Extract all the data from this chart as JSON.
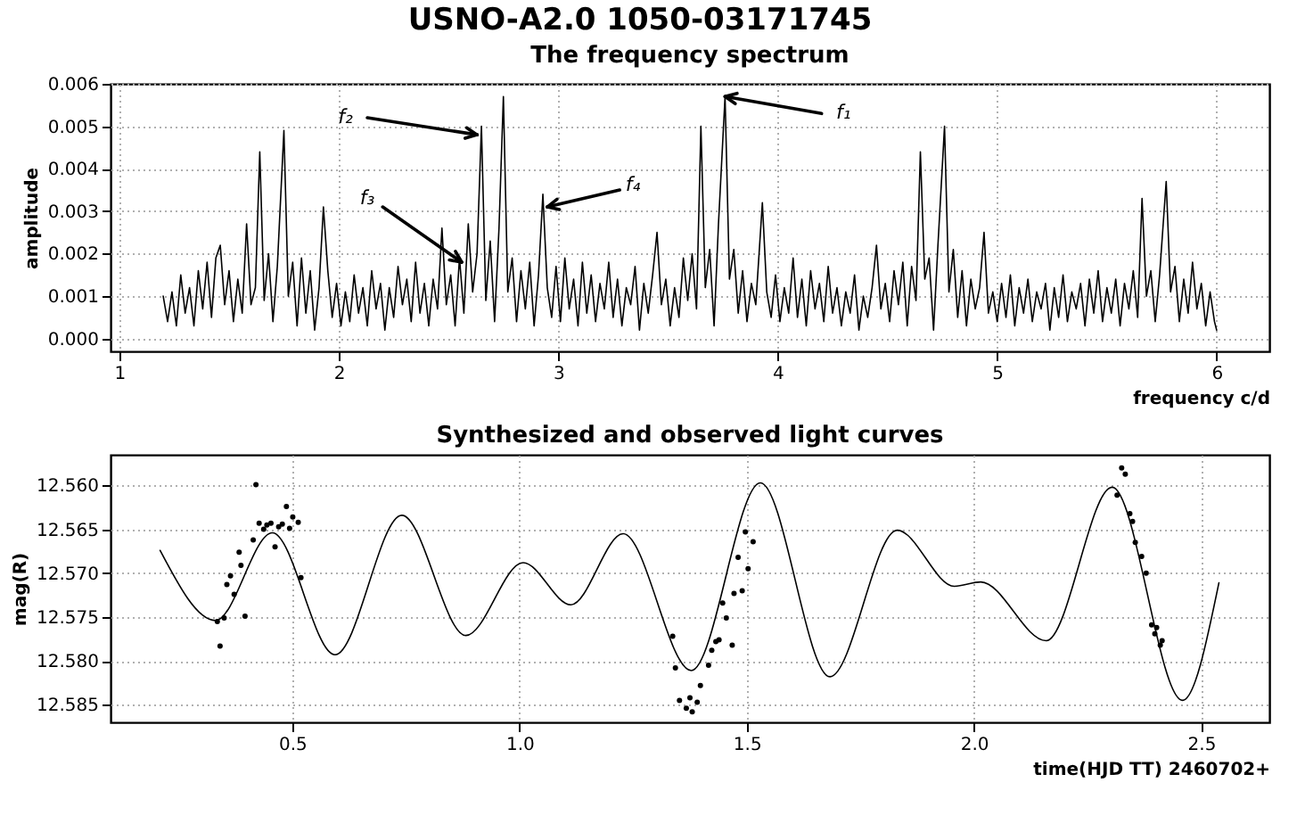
{
  "chart_data": [
    {
      "type": "line",
      "title": "USNO-A2.0 1050-03171745",
      "subtitle": "The frequency spectrum",
      "xlabel": "frequency c/d",
      "ylabel": "amplitude",
      "color": "#000000",
      "marker": "none",
      "line_style": "solid",
      "grid": true,
      "xlim": [
        0.96,
        6.24
      ],
      "ylim": [
        -0.0003,
        0.006
      ],
      "xticks": [
        1,
        2,
        3,
        4,
        5,
        6
      ],
      "yticks": [
        {
          "value": 0,
          "label": "0.000"
        },
        {
          "value": 0.001,
          "label": "0.001"
        },
        {
          "value": 0.002,
          "label": "0.002"
        },
        {
          "value": 0.003,
          "label": "0.003"
        },
        {
          "value": 0.004,
          "label": "0.004"
        },
        {
          "value": 0.005,
          "label": "0.005"
        },
        {
          "value": 0.006,
          "label": "0.006"
        }
      ],
      "x": [
        1.2,
        1.22,
        1.24,
        1.26,
        1.28,
        1.3,
        1.32,
        1.34,
        1.36,
        1.38,
        1.4,
        1.42,
        1.44,
        1.46,
        1.48,
        1.5,
        1.52,
        1.54,
        1.56,
        1.58,
        1.6,
        1.62,
        1.64,
        1.66,
        1.68,
        1.7,
        1.72,
        1.75,
        1.77,
        1.79,
        1.81,
        1.83,
        1.85,
        1.87,
        1.89,
        1.91,
        1.93,
        1.95,
        1.97,
        1.99,
        2.01,
        2.03,
        2.05,
        2.07,
        2.09,
        2.11,
        2.13,
        2.15,
        2.17,
        2.19,
        2.21,
        2.23,
        2.25,
        2.27,
        2.29,
        2.31,
        2.33,
        2.35,
        2.37,
        2.39,
        2.41,
        2.43,
        2.45,
        2.47,
        2.49,
        2.51,
        2.53,
        2.55,
        2.57,
        2.59,
        2.61,
        2.63,
        2.65,
        2.67,
        2.69,
        2.71,
        2.73,
        2.75,
        2.77,
        2.79,
        2.81,
        2.83,
        2.85,
        2.87,
        2.89,
        2.91,
        2.93,
        2.95,
        2.97,
        2.99,
        3.01,
        3.03,
        3.05,
        3.07,
        3.09,
        3.11,
        3.13,
        3.15,
        3.17,
        3.19,
        3.21,
        3.23,
        3.25,
        3.27,
        3.29,
        3.31,
        3.33,
        3.35,
        3.37,
        3.39,
        3.41,
        3.43,
        3.45,
        3.47,
        3.49,
        3.51,
        3.53,
        3.55,
        3.57,
        3.59,
        3.61,
        3.63,
        3.65,
        3.67,
        3.69,
        3.71,
        3.73,
        3.76,
        3.78,
        3.8,
        3.82,
        3.84,
        3.86,
        3.88,
        3.9,
        3.93,
        3.95,
        3.97,
        3.99,
        4.01,
        4.03,
        4.05,
        4.07,
        4.09,
        4.11,
        4.13,
        4.15,
        4.17,
        4.19,
        4.21,
        4.23,
        4.25,
        4.27,
        4.29,
        4.31,
        4.33,
        4.35,
        4.37,
        4.39,
        4.41,
        4.43,
        4.45,
        4.47,
        4.49,
        4.51,
        4.53,
        4.55,
        4.57,
        4.59,
        4.61,
        4.63,
        4.65,
        4.67,
        4.69,
        4.71,
        4.73,
        4.76,
        4.78,
        4.8,
        4.82,
        4.84,
        4.86,
        4.88,
        4.9,
        4.92,
        4.94,
        4.96,
        4.98,
        5.0,
        5.02,
        5.04,
        5.06,
        5.08,
        5.1,
        5.12,
        5.14,
        5.16,
        5.18,
        5.2,
        5.22,
        5.24,
        5.26,
        5.28,
        5.3,
        5.32,
        5.34,
        5.36,
        5.38,
        5.4,
        5.42,
        5.44,
        5.46,
        5.48,
        5.5,
        5.52,
        5.54,
        5.56,
        5.58,
        5.6,
        5.62,
        5.64,
        5.66,
        5.68,
        5.7,
        5.72,
        5.74,
        5.77,
        5.79,
        5.81,
        5.83,
        5.85,
        5.87,
        5.89,
        5.91,
        5.93,
        5.95,
        5.97,
        5.99,
        6.0
      ],
      "values": [
        0.001,
        0.0004,
        0.0011,
        0.0003,
        0.0015,
        0.0006,
        0.0012,
        0.0003,
        0.0016,
        0.0007,
        0.0018,
        0.0005,
        0.0019,
        0.0022,
        0.0008,
        0.0016,
        0.0004,
        0.0014,
        0.0006,
        0.0027,
        0.0008,
        0.0012,
        0.0044,
        0.0009,
        0.002,
        0.0004,
        0.0017,
        0.0049,
        0.001,
        0.0018,
        0.0003,
        0.0019,
        0.0006,
        0.0016,
        0.0002,
        0.0012,
        0.0031,
        0.0016,
        0.0005,
        0.0013,
        0.0003,
        0.0011,
        0.0004,
        0.0015,
        0.0006,
        0.0012,
        0.0003,
        0.0016,
        0.0007,
        0.0013,
        0.0002,
        0.0012,
        0.0005,
        0.0017,
        0.0008,
        0.0014,
        0.0004,
        0.0018,
        0.0006,
        0.0013,
        0.0003,
        0.0014,
        0.0007,
        0.0026,
        0.0008,
        0.0015,
        0.0003,
        0.0019,
        0.0006,
        0.0027,
        0.0011,
        0.002,
        0.005,
        0.0009,
        0.0023,
        0.0004,
        0.0026,
        0.0057,
        0.0011,
        0.0019,
        0.0004,
        0.0016,
        0.0007,
        0.0018,
        0.0003,
        0.0015,
        0.0034,
        0.0012,
        0.0005,
        0.0017,
        0.0004,
        0.0019,
        0.0007,
        0.0014,
        0.0003,
        0.0018,
        0.0006,
        0.0015,
        0.0004,
        0.0013,
        0.0007,
        0.0018,
        0.0005,
        0.0014,
        0.0003,
        0.0012,
        0.0008,
        0.0017,
        0.0002,
        0.0013,
        0.0006,
        0.0015,
        0.0025,
        0.0008,
        0.0014,
        0.0003,
        0.0012,
        0.0005,
        0.0019,
        0.0009,
        0.002,
        0.0007,
        0.005,
        0.0012,
        0.0021,
        0.0003,
        0.0027,
        0.0057,
        0.0014,
        0.0021,
        0.0006,
        0.0016,
        0.0004,
        0.0013,
        0.0008,
        0.0032,
        0.0011,
        0.0005,
        0.0015,
        0.0004,
        0.0012,
        0.0006,
        0.0019,
        0.0005,
        0.0014,
        0.0003,
        0.0016,
        0.0007,
        0.0013,
        0.0004,
        0.0017,
        0.0006,
        0.0012,
        0.0003,
        0.0011,
        0.0006,
        0.0015,
        0.0002,
        0.001,
        0.0005,
        0.0012,
        0.0022,
        0.0007,
        0.0013,
        0.0004,
        0.0016,
        0.0008,
        0.0018,
        0.0003,
        0.0017,
        0.0009,
        0.0044,
        0.0014,
        0.0019,
        0.0002,
        0.0022,
        0.005,
        0.0011,
        0.0021,
        0.0005,
        0.0016,
        0.0003,
        0.0014,
        0.0007,
        0.0012,
        0.0025,
        0.0006,
        0.0011,
        0.0004,
        0.0013,
        0.0005,
        0.0015,
        0.0003,
        0.0012,
        0.0006,
        0.0014,
        0.0004,
        0.0011,
        0.0007,
        0.0013,
        0.0002,
        0.0012,
        0.0005,
        0.0015,
        0.0004,
        0.0011,
        0.0007,
        0.0013,
        0.0003,
        0.0014,
        0.0006,
        0.0016,
        0.0004,
        0.0012,
        0.0006,
        0.0014,
        0.0003,
        0.0013,
        0.0007,
        0.0016,
        0.0005,
        0.0033,
        0.001,
        0.0016,
        0.0004,
        0.0015,
        0.0037,
        0.0011,
        0.0017,
        0.0004,
        0.0014,
        0.0006,
        0.0018,
        0.0007,
        0.0013,
        0.0003,
        0.0011,
        0.0004,
        0.0002
      ],
      "annotations": [
        {
          "text": "f₁",
          "x": 3.76,
          "y": 0.0057
        },
        {
          "text": "f₂",
          "x": 2.63,
          "y": 0.0048
        },
        {
          "text": "f₃",
          "x": 2.56,
          "y": 0.0018
        },
        {
          "text": "f₄",
          "x": 2.95,
          "y": 0.0031
        }
      ]
    },
    {
      "type": "line",
      "title": "Synthesized and observed light curves",
      "xlabel": "time(HJD TT) 2460702+",
      "ylabel": "mag(R)",
      "grid": true,
      "xlim": [
        0.1,
        2.65
      ],
      "ylim": [
        12.587,
        12.5565
      ],
      "xticks": [
        0.5,
        {
          "value": 1,
          "label": "1.0"
        },
        1.5,
        {
          "value": 2,
          "label": "2.0"
        },
        2.5
      ],
      "yticks": [
        {
          "value": 12.56,
          "label": "12.560"
        },
        {
          "value": 12.565,
          "label": "12.565"
        },
        {
          "value": 12.57,
          "label": "12.570"
        },
        {
          "value": 12.575,
          "label": "12.575"
        },
        {
          "value": 12.58,
          "label": "12.580"
        },
        {
          "value": 12.585,
          "label": "12.585"
        }
      ],
      "series": [
        {
          "type": "line",
          "color": "#000000",
          "marker": "none",
          "line_style": "solid",
          "x": [
            0.209,
            0.331,
            0.456,
            0.594,
            0.741,
            0.882,
            1.008,
            1.113,
            1.228,
            1.378,
            1.53,
            1.683,
            1.831,
            1.957,
            2.015,
            2.159,
            2.304,
            2.459,
            2.539
          ],
          "values": [
            12.5674,
            12.5754,
            12.5654,
            12.5793,
            12.5634,
            12.5771,
            12.5688,
            12.5736,
            12.5655,
            12.5811,
            12.5597,
            12.5818,
            12.5651,
            12.5715,
            12.571,
            12.5777,
            12.5602,
            12.5845,
            12.5711
          ]
        },
        {
          "type": "scatter",
          "color": "#000000",
          "marker": "circle",
          "x": [
            0.335,
            0.341,
            0.35,
            0.356,
            0.364,
            0.372,
            0.383,
            0.387,
            0.396,
            0.414,
            0.42,
            0.427,
            0.437,
            0.444,
            0.453,
            0.462,
            0.47,
            0.478,
            0.487,
            0.494,
            0.501,
            0.513,
            0.519,
            1.337,
            1.343,
            1.352,
            1.367,
            1.375,
            1.38,
            1.391,
            1.398,
            1.416,
            1.423,
            1.432,
            1.439,
            1.447,
            1.455,
            1.468,
            1.472,
            1.481,
            1.49,
            1.497,
            1.503,
            1.514,
            2.315,
            2.325,
            2.333,
            2.343,
            2.349,
            2.355,
            2.369,
            2.379,
            2.391,
            2.398,
            2.402,
            2.41,
            2.414
          ],
          "values": [
            12.5755,
            12.5783,
            12.5751,
            12.5713,
            12.5703,
            12.5724,
            12.5676,
            12.5691,
            12.5749,
            12.5662,
            12.5599,
            12.5643,
            12.565,
            12.5645,
            12.5643,
            12.567,
            12.5647,
            12.5644,
            12.5624,
            12.5649,
            12.5636,
            12.5642,
            12.5705,
            12.5772,
            12.5808,
            12.5845,
            12.5854,
            12.5842,
            12.5858,
            12.5847,
            12.5828,
            12.5805,
            12.5788,
            12.5778,
            12.5776,
            12.5734,
            12.5751,
            12.5782,
            12.5723,
            12.5682,
            12.572,
            12.5653,
            12.5695,
            12.5664,
            12.5611,
            12.558,
            12.5587,
            12.5632,
            12.5641,
            12.5665,
            12.5681,
            12.57,
            12.5759,
            12.5769,
            12.5762,
            12.5782,
            12.5777
          ]
        }
      ]
    }
  ]
}
